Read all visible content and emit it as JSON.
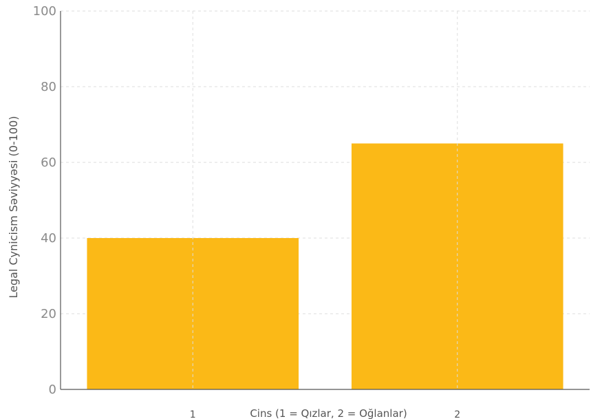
{
  "chart_data": {
    "type": "bar",
    "categories": [
      "1",
      "2"
    ],
    "values": [
      40,
      65
    ],
    "xlabel": "Cins (1 = Qızlar, 2 = Oğlanlar)",
    "ylabel": "Legal Cynicism Səviyyəsi (0-100)",
    "ylim": [
      0,
      100
    ],
    "yticks": [
      0,
      20,
      40,
      60,
      80,
      100
    ],
    "grid": true,
    "bar_color": "#FBB917"
  }
}
